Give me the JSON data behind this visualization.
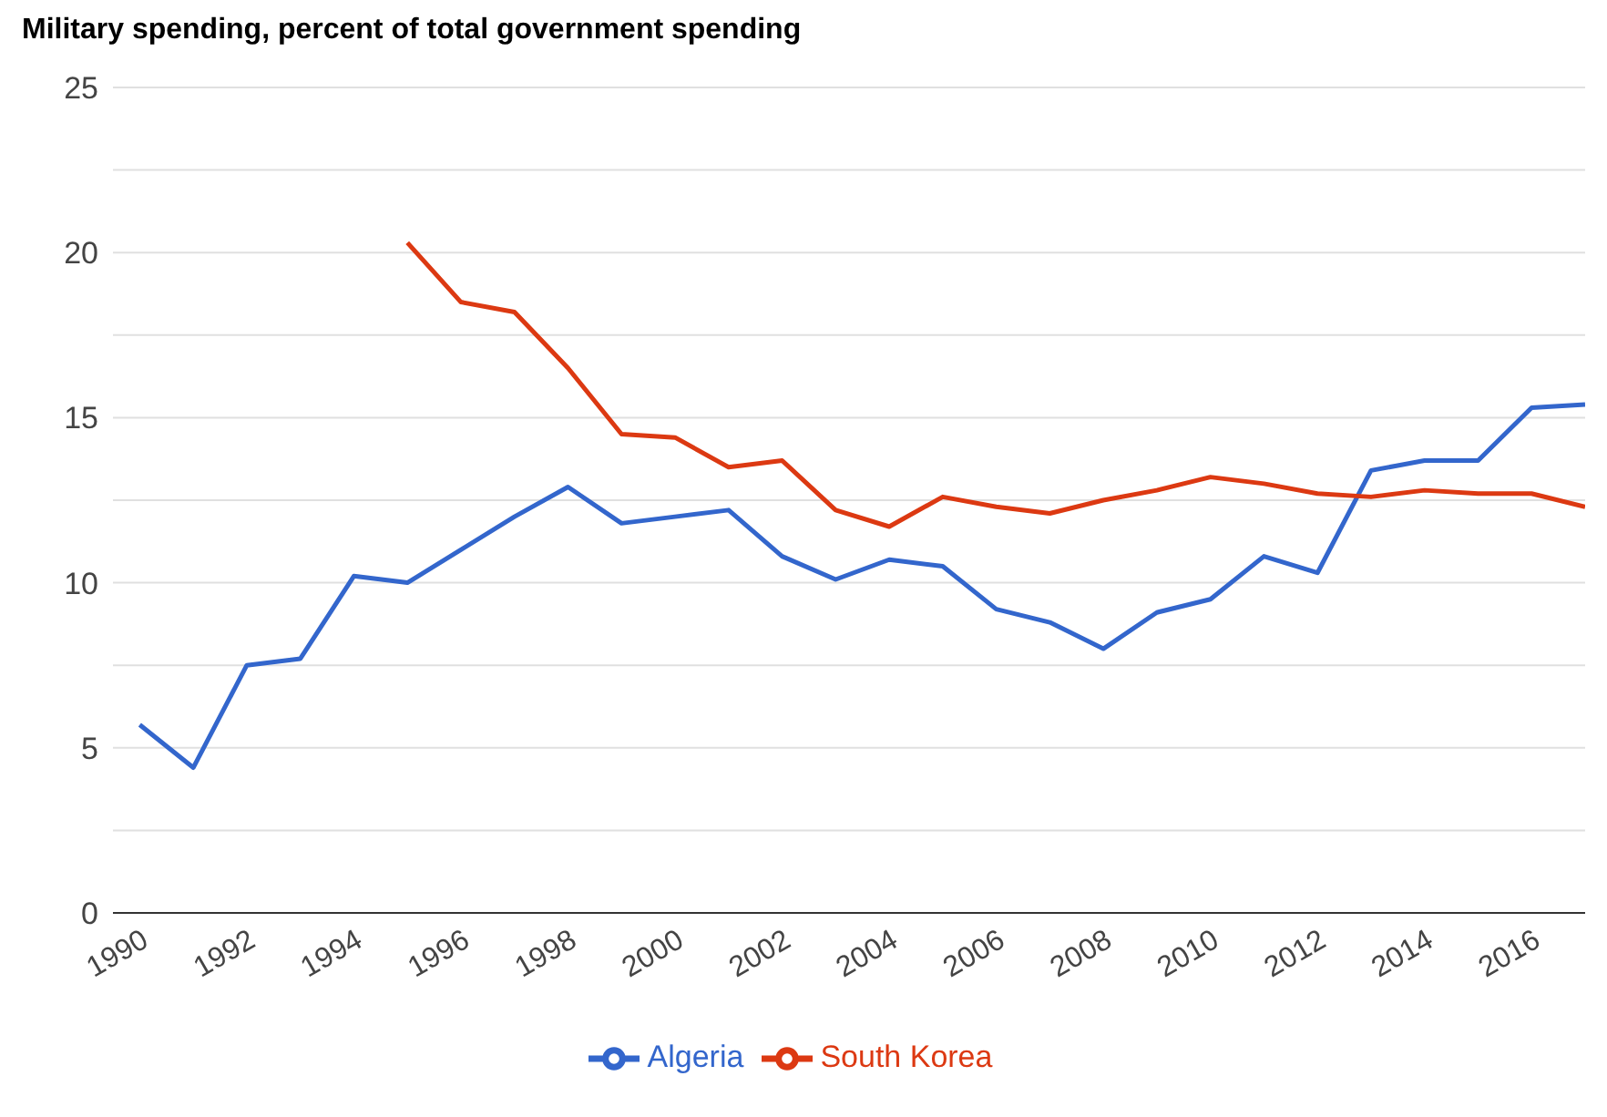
{
  "chart_data": {
    "type": "line",
    "title": "Military spending, percent of total government spending",
    "x": [
      1990,
      1991,
      1992,
      1993,
      1994,
      1995,
      1996,
      1997,
      1998,
      1999,
      2000,
      2001,
      2002,
      2003,
      2004,
      2005,
      2006,
      2007,
      2008,
      2009,
      2010,
      2011,
      2012,
      2013,
      2014,
      2015,
      2016,
      2017
    ],
    "series": [
      {
        "name": "Algeria",
        "color": "#3366cc",
        "values": [
          5.7,
          4.4,
          7.5,
          7.7,
          10.2,
          10.0,
          11.0,
          12.0,
          12.9,
          11.8,
          12.0,
          12.2,
          10.8,
          10.1,
          10.7,
          10.5,
          9.2,
          8.8,
          8.0,
          9.1,
          9.5,
          10.8,
          10.3,
          13.4,
          13.7,
          13.7,
          15.3,
          15.4
        ]
      },
      {
        "name": "South Korea",
        "color": "#dc3912",
        "values": [
          null,
          null,
          null,
          null,
          null,
          20.3,
          18.5,
          18.2,
          16.5,
          14.5,
          14.4,
          13.5,
          13.7,
          12.2,
          11.7,
          12.6,
          12.3,
          12.1,
          12.5,
          12.8,
          13.2,
          13.0,
          12.7,
          12.6,
          12.8,
          12.7,
          12.7,
          12.3
        ]
      }
    ],
    "xlim": [
      1989.5,
      2017
    ],
    "xticks": [
      1990,
      1992,
      1994,
      1996,
      1998,
      2000,
      2002,
      2004,
      2006,
      2008,
      2010,
      2012,
      2014,
      2016
    ],
    "ylim": [
      0,
      25
    ],
    "yticks": [
      0,
      {
        "value": 2.5,
        "label": null
      },
      5,
      {
        "value": 7.5,
        "label": null
      },
      10,
      {
        "value": 12.5,
        "label": null
      },
      15,
      {
        "value": 17.5,
        "label": null
      },
      20,
      {
        "value": 22.5,
        "label": null
      },
      25
    ],
    "grid": "y",
    "legend": "bottom",
    "marker": "none",
    "line_style": "solid"
  }
}
